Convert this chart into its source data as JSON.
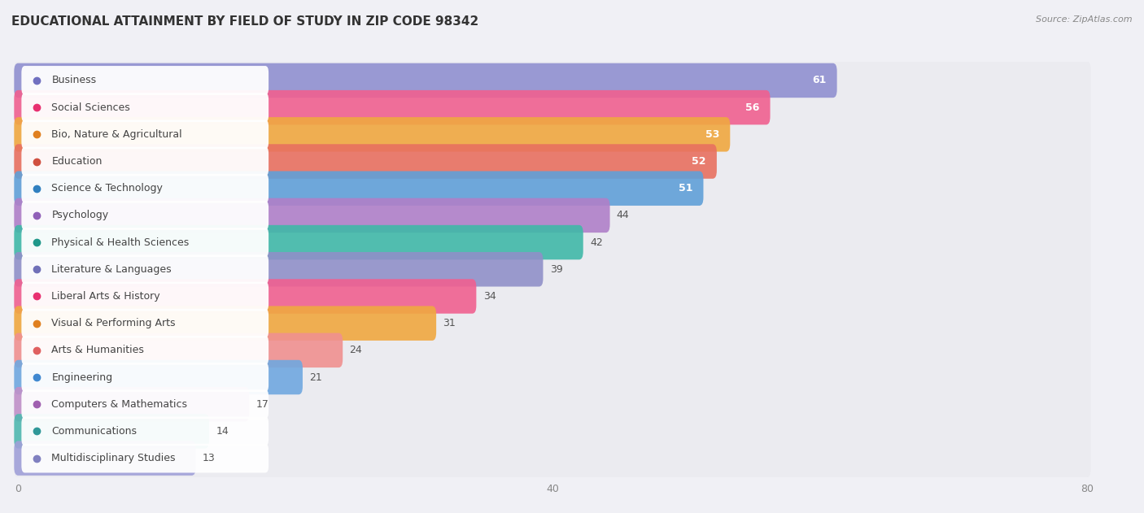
{
  "title": "EDUCATIONAL ATTAINMENT BY FIELD OF STUDY IN ZIP CODE 98342",
  "source": "Source: ZipAtlas.com",
  "categories": [
    "Business",
    "Social Sciences",
    "Bio, Nature & Agricultural",
    "Education",
    "Science & Technology",
    "Psychology",
    "Physical & Health Sciences",
    "Literature & Languages",
    "Liberal Arts & History",
    "Visual & Performing Arts",
    "Arts & Humanities",
    "Engineering",
    "Computers & Mathematics",
    "Communications",
    "Multidisciplinary Studies"
  ],
  "values": [
    61,
    56,
    53,
    52,
    51,
    44,
    42,
    39,
    34,
    31,
    24,
    21,
    17,
    14,
    13
  ],
  "bar_colors": [
    "#9090d0",
    "#f06090",
    "#f0a840",
    "#e87060",
    "#60a0d8",
    "#b080c8",
    "#40b8a8",
    "#9090c8",
    "#f06090",
    "#f0a840",
    "#f09090",
    "#70a8e0",
    "#c090c8",
    "#50b8b0",
    "#a0a0d8"
  ],
  "dot_colors": [
    "#7070c0",
    "#e83070",
    "#e08020",
    "#d05040",
    "#3080c0",
    "#9060b8",
    "#20988a",
    "#7070b8",
    "#e83070",
    "#e08020",
    "#e06060",
    "#4088d0",
    "#a060b0",
    "#309898",
    "#8080c0"
  ],
  "xlim": [
    0,
    80
  ],
  "xticks": [
    0,
    40,
    80
  ],
  "background_color": "#f0f0f5",
  "bar_bg_color": "#e8e8ee",
  "title_fontsize": 11,
  "label_fontsize": 9,
  "value_fontsize": 9
}
